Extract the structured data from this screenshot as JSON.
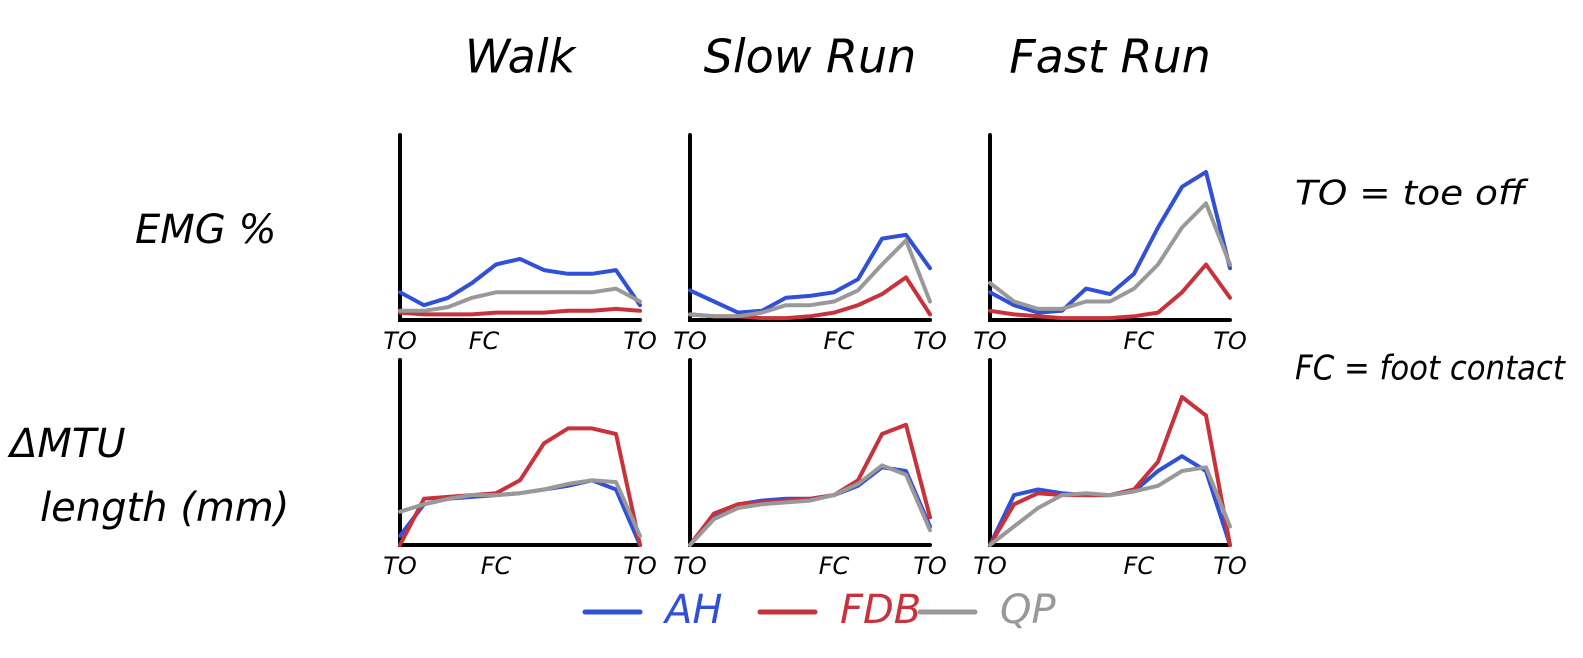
{
  "chart_data": [
    {
      "type": "line",
      "title": "Walk",
      "ylabel": "EMG %",
      "x": [
        0,
        10,
        20,
        30,
        40,
        50,
        60,
        70,
        80,
        90,
        100
      ],
      "xlim": [
        0,
        100
      ],
      "ylim": [
        0,
        100
      ],
      "xticks": [
        {
          "value": 0,
          "label": "TO"
        },
        {
          "value": 35,
          "label": "FC"
        },
        {
          "value": 100,
          "label": "TO"
        }
      ],
      "series": [
        {
          "name": "AH",
          "color": "#3050d8",
          "values": [
            15,
            8,
            12,
            20,
            30,
            33,
            27,
            25,
            25,
            27,
            8
          ]
        },
        {
          "name": "FDB",
          "color": "#c8323a",
          "values": [
            4,
            3,
            3,
            3,
            4,
            4,
            4,
            5,
            5,
            6,
            5
          ]
        },
        {
          "name": "QP",
          "color": "#999999",
          "values": [
            5,
            5,
            7,
            12,
            15,
            15,
            15,
            15,
            15,
            17,
            10
          ]
        }
      ]
    },
    {
      "type": "line",
      "title": "Slow Run",
      "x": [
        0,
        10,
        20,
        30,
        40,
        50,
        60,
        70,
        80,
        90,
        100
      ],
      "xlim": [
        0,
        100
      ],
      "ylim": [
        0,
        100
      ],
      "xticks": [
        {
          "value": 0,
          "label": "TO"
        },
        {
          "value": 62,
          "label": "FC"
        },
        {
          "value": 100,
          "label": "TO"
        }
      ],
      "series": [
        {
          "name": "AH",
          "color": "#3050d8",
          "values": [
            16,
            10,
            4,
            5,
            12,
            13,
            15,
            22,
            44,
            46,
            28
          ]
        },
        {
          "name": "FDB",
          "color": "#c8323a",
          "values": [
            3,
            2,
            2,
            1,
            1,
            2,
            4,
            8,
            14,
            23,
            3
          ]
        },
        {
          "name": "QP",
          "color": "#999999",
          "values": [
            3,
            2,
            2,
            4,
            8,
            8,
            10,
            16,
            30,
            43,
            10
          ]
        }
      ]
    },
    {
      "type": "line",
      "title": "Fast Run",
      "x": [
        0,
        10,
        20,
        30,
        40,
        50,
        60,
        70,
        80,
        90,
        100
      ],
      "xlim": [
        0,
        100
      ],
      "ylim": [
        0,
        100
      ],
      "xticks": [
        {
          "value": 0,
          "label": "TO"
        },
        {
          "value": 62,
          "label": "FC"
        },
        {
          "value": 100,
          "label": "TO"
        }
      ],
      "series": [
        {
          "name": "AH",
          "color": "#3050d8",
          "values": [
            15,
            8,
            4,
            5,
            17,
            14,
            25,
            50,
            72,
            80,
            28
          ]
        },
        {
          "name": "FDB",
          "color": "#c8323a",
          "values": [
            5,
            3,
            2,
            1,
            1,
            1,
            2,
            4,
            15,
            30,
            12
          ]
        },
        {
          "name": "QP",
          "color": "#999999",
          "values": [
            20,
            10,
            6,
            6,
            10,
            10,
            17,
            30,
            50,
            63,
            30
          ]
        }
      ]
    },
    {
      "type": "line",
      "ylabel": "ΔMTU length (mm)",
      "x": [
        0,
        10,
        20,
        30,
        40,
        50,
        60,
        70,
        80,
        90,
        100
      ],
      "xlim": [
        0,
        100
      ],
      "ylim": [
        0,
        100
      ],
      "xticks": [
        {
          "value": 0,
          "label": "TO"
        },
        {
          "value": 40,
          "label": "FC"
        },
        {
          "value": 100,
          "label": "TO"
        }
      ],
      "series": [
        {
          "name": "AH",
          "color": "#3050d8",
          "values": [
            5,
            22,
            25,
            26,
            27,
            28,
            30,
            32,
            35,
            30,
            0
          ]
        },
        {
          "name": "FDB",
          "color": "#c8323a",
          "values": [
            0,
            25,
            26,
            27,
            28,
            35,
            55,
            63,
            63,
            60,
            0
          ]
        },
        {
          "name": "QP",
          "color": "#999999",
          "values": [
            18,
            22,
            25,
            27,
            27,
            28,
            30,
            33,
            35,
            34,
            5
          ]
        }
      ]
    },
    {
      "type": "line",
      "x": [
        0,
        10,
        20,
        30,
        40,
        50,
        60,
        70,
        80,
        90,
        100
      ],
      "xlim": [
        0,
        100
      ],
      "ylim": [
        0,
        100
      ],
      "xticks": [
        {
          "value": 0,
          "label": "TO"
        },
        {
          "value": 60,
          "label": "FC"
        },
        {
          "value": 100,
          "label": "TO"
        }
      ],
      "series": [
        {
          "name": "AH",
          "color": "#3050d8",
          "values": [
            0,
            15,
            22,
            24,
            25,
            25,
            27,
            32,
            42,
            40,
            10
          ]
        },
        {
          "name": "FDB",
          "color": "#c8323a",
          "values": [
            0,
            17,
            22,
            23,
            24,
            25,
            27,
            35,
            60,
            65,
            15
          ]
        },
        {
          "name": "QP",
          "color": "#999999",
          "values": [
            0,
            14,
            20,
            22,
            23,
            24,
            27,
            33,
            43,
            38,
            8
          ]
        }
      ]
    },
    {
      "type": "line",
      "x": [
        0,
        10,
        20,
        30,
        40,
        50,
        60,
        70,
        80,
        90,
        100
      ],
      "xlim": [
        0,
        100
      ],
      "ylim": [
        0,
        100
      ],
      "xticks": [
        {
          "value": 0,
          "label": "TO"
        },
        {
          "value": 62,
          "label": "FC"
        },
        {
          "value": 100,
          "label": "TO"
        }
      ],
      "series": [
        {
          "name": "AH",
          "color": "#3050d8",
          "values": [
            0,
            27,
            30,
            28,
            27,
            27,
            29,
            40,
            48,
            40,
            0
          ]
        },
        {
          "name": "FDB",
          "color": "#c8323a",
          "values": [
            0,
            22,
            28,
            27,
            27,
            27,
            30,
            45,
            80,
            70,
            0
          ]
        },
        {
          "name": "QP",
          "color": "#999999",
          "values": [
            0,
            10,
            20,
            27,
            28,
            27,
            29,
            32,
            40,
            42,
            10
          ]
        }
      ]
    }
  ],
  "annotations": [
    "TO = toe off",
    "FC = foot contact"
  ]
}
